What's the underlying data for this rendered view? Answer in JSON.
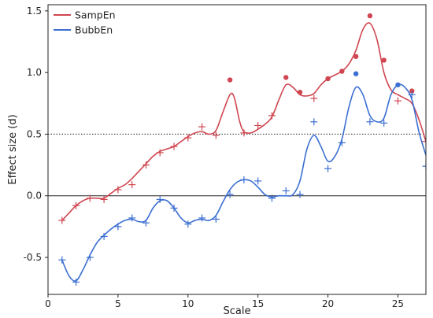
{
  "chart_data": {
    "type": "scatter",
    "xlabel": "Scale",
    "ylabel": "Effect size (d)",
    "xlim": [
      0,
      27
    ],
    "ylim": [
      -0.8,
      1.55
    ],
    "x_ticks": [
      0,
      5,
      10,
      15,
      20,
      25
    ],
    "y_ticks": [
      -0.5,
      0.0,
      0.5,
      1.0,
      1.5
    ],
    "x_tick_labels": [
      "0",
      "5",
      "10",
      "15",
      "20",
      "25"
    ],
    "y_tick_labels": [
      "-0.5",
      "0.0",
      "0.5",
      "1.0",
      "1.5"
    ],
    "reference_lines": [
      {
        "y": 0.5,
        "style": "dotted"
      },
      {
        "y": 0.0,
        "style": "solid"
      }
    ],
    "grid": false,
    "legend_position": "top-left",
    "series": [
      {
        "name": "SampEn",
        "color": "#d0454f",
        "x": [
          1,
          2,
          3,
          4,
          5,
          6,
          7,
          8,
          9,
          10,
          11,
          12,
          13,
          14,
          15,
          16,
          17,
          18,
          19,
          20,
          21,
          22,
          23,
          24,
          25,
          26,
          27
        ],
        "y": [
          -0.2,
          -0.08,
          -0.02,
          -0.03,
          0.05,
          0.09,
          0.25,
          0.35,
          0.4,
          0.47,
          0.56,
          0.49,
          0.94,
          0.51,
          0.57,
          0.65,
          0.96,
          0.84,
          0.79,
          0.95,
          1.01,
          1.13,
          1.46,
          1.1,
          0.77,
          0.85,
          0.44
        ],
        "significant": [
          false,
          false,
          false,
          false,
          false,
          false,
          false,
          false,
          false,
          false,
          false,
          false,
          true,
          false,
          false,
          false,
          true,
          true,
          false,
          true,
          true,
          true,
          true,
          true,
          false,
          true,
          false
        ],
        "smooth": [
          [
            1,
            -0.2
          ],
          [
            1.5,
            -0.14
          ],
          [
            2,
            -0.08
          ],
          [
            2.5,
            -0.04
          ],
          [
            3,
            -0.02
          ],
          [
            3.5,
            -0.02
          ],
          [
            4,
            -0.02
          ],
          [
            4.5,
            0.02
          ],
          [
            5,
            0.06
          ],
          [
            5.5,
            0.09
          ],
          [
            6,
            0.14
          ],
          [
            6.5,
            0.2
          ],
          [
            7,
            0.26
          ],
          [
            7.5,
            0.32
          ],
          [
            8,
            0.36
          ],
          [
            8.5,
            0.38
          ],
          [
            9,
            0.4
          ],
          [
            9.5,
            0.44
          ],
          [
            10,
            0.48
          ],
          [
            10.5,
            0.51
          ],
          [
            11,
            0.52
          ],
          [
            11.5,
            0.5
          ],
          [
            12,
            0.53
          ],
          [
            12.5,
            0.68
          ],
          [
            13,
            0.82
          ],
          [
            13.3,
            0.8
          ],
          [
            13.7,
            0.6
          ],
          [
            14,
            0.52
          ],
          [
            14.5,
            0.51
          ],
          [
            15,
            0.54
          ],
          [
            15.5,
            0.58
          ],
          [
            16,
            0.64
          ],
          [
            16.5,
            0.78
          ],
          [
            17,
            0.9
          ],
          [
            17.5,
            0.88
          ],
          [
            18,
            0.82
          ],
          [
            18.5,
            0.81
          ],
          [
            19,
            0.83
          ],
          [
            19.5,
            0.9
          ],
          [
            20,
            0.95
          ],
          [
            20.5,
            0.98
          ],
          [
            21,
            1.01
          ],
          [
            21.5,
            1.07
          ],
          [
            22,
            1.18
          ],
          [
            22.5,
            1.35
          ],
          [
            23,
            1.4
          ],
          [
            23.5,
            1.27
          ],
          [
            24,
            1.0
          ],
          [
            24.5,
            0.86
          ],
          [
            25,
            0.82
          ],
          [
            25.5,
            0.79
          ],
          [
            26,
            0.75
          ],
          [
            26.5,
            0.62
          ],
          [
            27,
            0.44
          ]
        ]
      },
      {
        "name": "BubbEn",
        "color": "#3b6fd2",
        "x": [
          1,
          2,
          3,
          4,
          5,
          6,
          7,
          8,
          9,
          10,
          11,
          12,
          13,
          14,
          15,
          16,
          17,
          18,
          19,
          20,
          21,
          22,
          23,
          24,
          25,
          26,
          27
        ],
        "y": [
          -0.52,
          -0.7,
          -0.5,
          -0.33,
          -0.25,
          -0.18,
          -0.22,
          -0.03,
          -0.1,
          -0.23,
          -0.18,
          -0.19,
          0.01,
          0.13,
          0.12,
          -0.02,
          0.04,
          0.01,
          0.6,
          0.22,
          0.43,
          0.99,
          0.6,
          0.59,
          0.9,
          0.82,
          0.24
        ],
        "significant": [
          false,
          false,
          false,
          false,
          false,
          false,
          false,
          false,
          false,
          false,
          false,
          false,
          false,
          false,
          false,
          false,
          false,
          false,
          false,
          false,
          false,
          true,
          false,
          false,
          true,
          false,
          false
        ],
        "smooth": [
          [
            1,
            -0.52
          ],
          [
            1.5,
            -0.65
          ],
          [
            2,
            -0.69
          ],
          [
            2.5,
            -0.6
          ],
          [
            3,
            -0.48
          ],
          [
            3.5,
            -0.38
          ],
          [
            4,
            -0.32
          ],
          [
            4.5,
            -0.27
          ],
          [
            5,
            -0.23
          ],
          [
            5.5,
            -0.2
          ],
          [
            6,
            -0.19
          ],
          [
            6.5,
            -0.21
          ],
          [
            7,
            -0.2
          ],
          [
            7.5,
            -0.1
          ],
          [
            8,
            -0.04
          ],
          [
            8.5,
            -0.04
          ],
          [
            9,
            -0.1
          ],
          [
            9.5,
            -0.18
          ],
          [
            10,
            -0.22
          ],
          [
            10.5,
            -0.2
          ],
          [
            11,
            -0.19
          ],
          [
            11.5,
            -0.2
          ],
          [
            12,
            -0.16
          ],
          [
            12.5,
            -0.05
          ],
          [
            13,
            0.05
          ],
          [
            13.5,
            0.11
          ],
          [
            14,
            0.13
          ],
          [
            14.5,
            0.12
          ],
          [
            15,
            0.07
          ],
          [
            15.5,
            0.01
          ],
          [
            16,
            -0.01
          ],
          [
            16.5,
            0.0
          ],
          [
            17,
            0.0
          ],
          [
            17.5,
            0.01
          ],
          [
            18,
            0.12
          ],
          [
            18.5,
            0.38
          ],
          [
            19,
            0.49
          ],
          [
            19.5,
            0.4
          ],
          [
            20,
            0.28
          ],
          [
            20.5,
            0.32
          ],
          [
            21,
            0.46
          ],
          [
            21.5,
            0.72
          ],
          [
            22,
            0.88
          ],
          [
            22.5,
            0.82
          ],
          [
            23,
            0.65
          ],
          [
            23.5,
            0.6
          ],
          [
            24,
            0.63
          ],
          [
            24.5,
            0.82
          ],
          [
            25,
            0.9
          ],
          [
            25.5,
            0.88
          ],
          [
            26,
            0.78
          ],
          [
            26.5,
            0.52
          ],
          [
            27,
            0.33
          ]
        ]
      }
    ]
  }
}
